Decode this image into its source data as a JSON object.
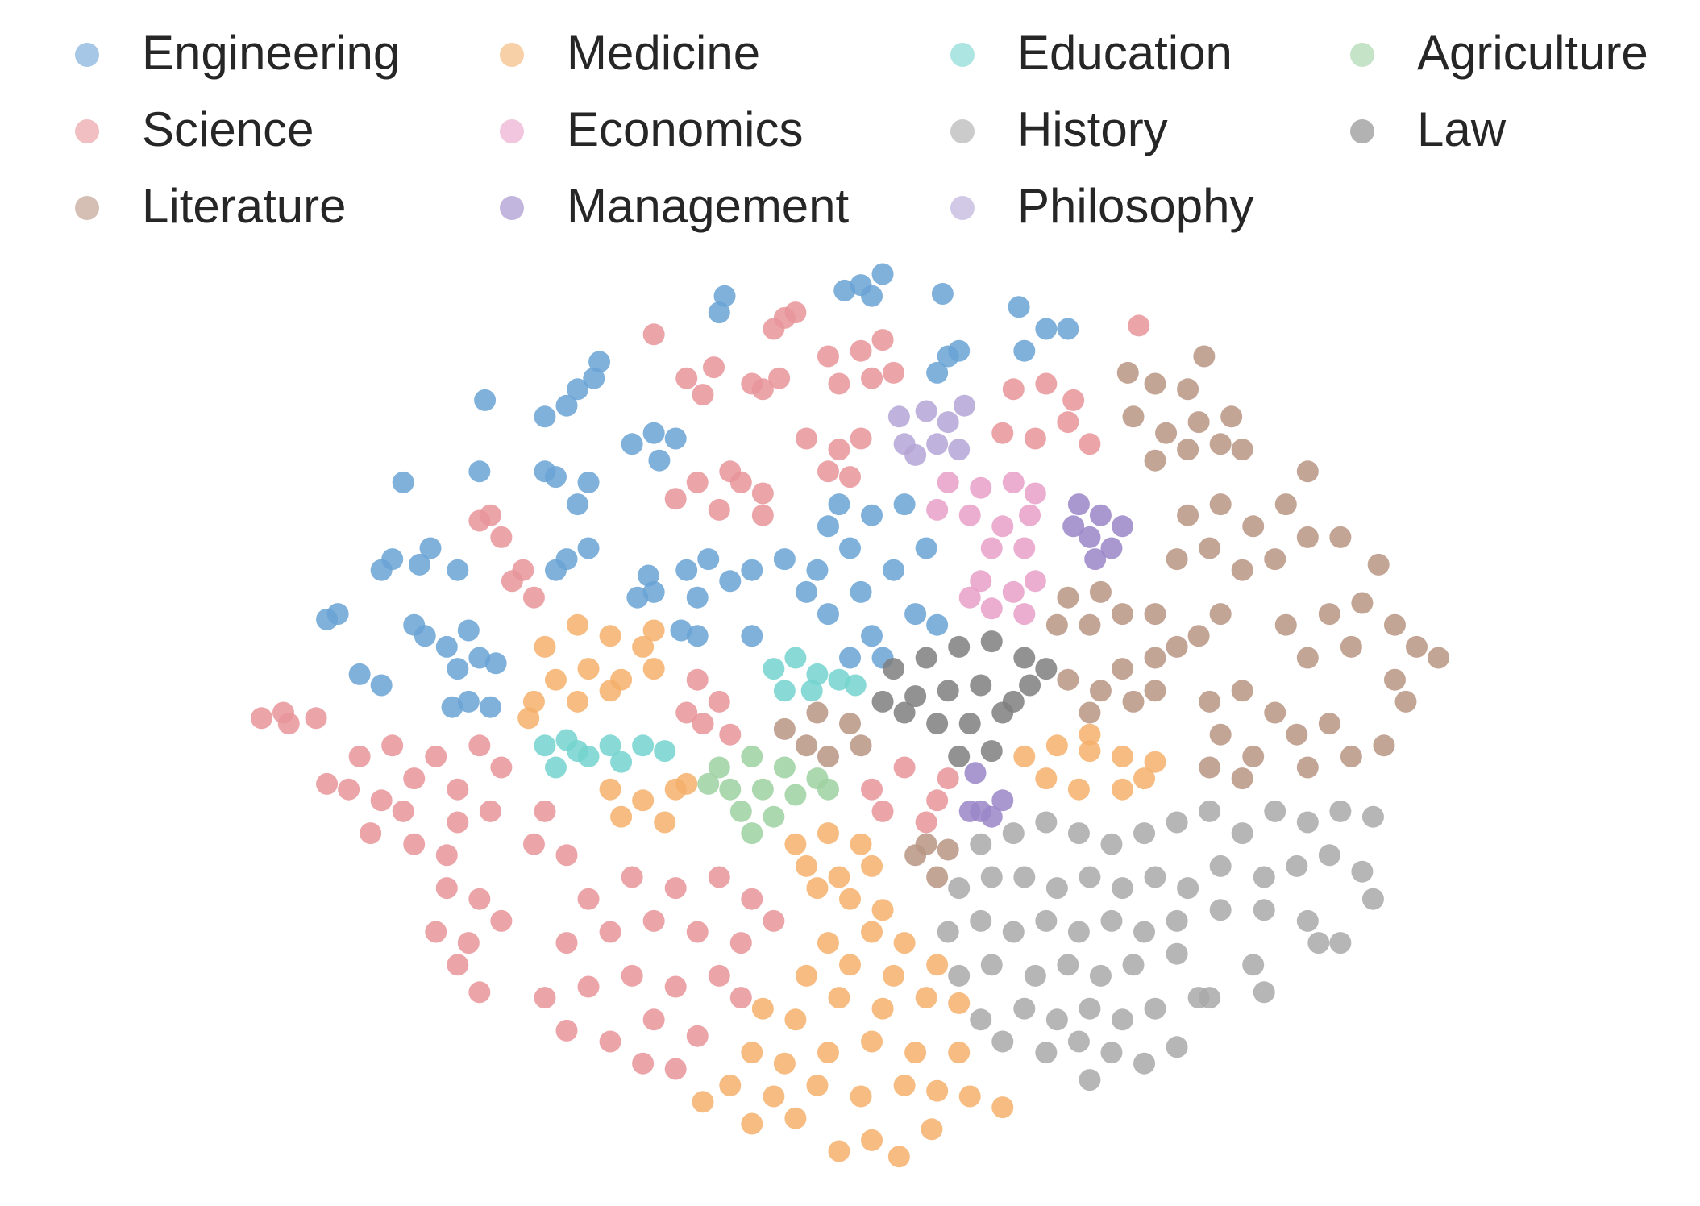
{
  "chart_data": {
    "type": "scatter",
    "legend": "top",
    "xlim": [
      0,
      156
    ],
    "ylim": [
      0,
      110
    ],
    "series": [
      {
        "name": "Engineering",
        "color": "#6aa3d5",
        "x": [
          79,
          81,
          77.5,
          80,
          66,
          66.5,
          86.5,
          93.5,
          96,
          94,
          98,
          87,
          86,
          88,
          55,
          53,
          54.5,
          50,
          52,
          44.5,
          60,
          58,
          62,
          60.5,
          44,
          51,
          54,
          50,
          53,
          37,
          36,
          38.5,
          35,
          39.5,
          42,
          30,
          31,
          39,
          41,
          44,
          43,
          38,
          45.5,
          42,
          33,
          35,
          43,
          45,
          41.5,
          52,
          54,
          51,
          59.5,
          58.5,
          60,
          63,
          65,
          67,
          69,
          64,
          64,
          62.5,
          69,
          76,
          78,
          80,
          75,
          79,
          82,
          76,
          80,
          84,
          85,
          83,
          77,
          74,
          81,
          86,
          72,
          78
        ],
        "y": [
          84,
          85,
          83.5,
          83,
          81.5,
          83,
          83.2,
          82,
          80,
          78,
          80,
          77.5,
          76,
          78,
          77,
          74.5,
          75.5,
          72,
          73,
          73.5,
          70.5,
          69.5,
          70,
          68,
          67,
          66.5,
          66,
          67,
          64,
          66,
          59,
          58.5,
          58,
          60,
          58,
          53.5,
          54,
          52,
          51,
          50,
          52.5,
          53,
          49.5,
          49,
          48.5,
          47.5,
          46,
          45.5,
          45.5,
          59,
          60,
          58,
          57.5,
          55.5,
          56,
          58,
          59,
          57,
          58,
          55.5,
          52,
          52.5,
          52,
          62,
          60,
          63,
          58,
          56,
          58,
          54,
          52,
          54,
          60,
          64,
          64,
          56,
          50,
          53,
          59,
          50
        ]
      },
      {
        "name": "Science",
        "color": "#e8959a",
        "x": [
          60,
          72,
          71,
          73,
          63,
          65.5,
          64.5,
          70,
          71.5,
          69,
          76,
          79,
          81,
          82,
          77,
          80,
          93,
          96,
          98.5,
          92,
          95,
          98,
          100,
          104.5,
          74,
          77,
          79,
          76,
          78,
          64,
          67,
          70,
          62,
          66,
          70,
          68,
          44,
          46,
          45,
          47,
          49,
          48,
          24,
          26.5,
          29,
          26,
          33,
          36,
          40,
          44,
          32,
          35,
          38,
          42,
          46,
          34,
          38,
          42,
          45,
          30,
          37,
          41,
          41,
          44,
          40,
          43,
          46,
          42,
          44,
          64,
          66,
          63,
          67,
          64.5,
          80,
          83,
          86,
          81,
          85,
          87,
          50,
          49,
          52,
          54,
          58,
          62,
          66,
          69,
          52,
          56,
          60,
          64,
          68,
          71,
          50,
          54,
          58,
          62,
          66,
          52,
          56,
          60,
          64,
          59,
          62,
          68
        ],
        "y": [
          79.5,
          81,
          80,
          81.5,
          75.5,
          76.5,
          74,
          74.5,
          75.5,
          75,
          77.5,
          78,
          79,
          76,
          75,
          75.5,
          74.5,
          75,
          73.5,
          70.5,
          70,
          71.5,
          69.5,
          80.3,
          70,
          69,
          70,
          67,
          66.5,
          66,
          67,
          65,
          64.5,
          63.5,
          63,
          66,
          62.5,
          61,
          63,
          57,
          55.5,
          58,
          44.5,
          44,
          44.5,
          45,
          41,
          42,
          41,
          42,
          38,
          37,
          39,
          38,
          40,
          34,
          33,
          35,
          36,
          38.5,
          36,
          32,
          29,
          28,
          25,
          24,
          26,
          22,
          19.5,
          48,
          46,
          45,
          43,
          44,
          38,
          40,
          37,
          36,
          35,
          39,
          36,
          33,
          32,
          28,
          30,
          29,
          30,
          28,
          24,
          25,
          26,
          25,
          24,
          26,
          19,
          20,
          21,
          20,
          21,
          16,
          15,
          17,
          15.5,
          13,
          12.5,
          19
        ]
      },
      {
        "name": "Literature",
        "color": "#b99584",
        "x": [
          103.5,
          106,
          109,
          110.5,
          104,
          107,
          110,
          113,
          106,
          109,
          112,
          114,
          120,
          109,
          112,
          115,
          118,
          120,
          108,
          111,
          114,
          117,
          123,
          126.5,
          98,
          101,
          100,
          97,
          103,
          106,
          108,
          106,
          110,
          112,
          118,
          122,
          125,
          128,
          130,
          132,
          120,
          124,
          128,
          129,
          98,
          101,
          104,
          100,
          103,
          106,
          111,
          114,
          117,
          112,
          115,
          119,
          122,
          120,
          124,
          111,
          114,
          127,
          72,
          75,
          78,
          76,
          79,
          74,
          84,
          86,
          85,
          87
        ],
        "y": [
          76,
          75,
          74.5,
          77.5,
          72,
          70.5,
          71.5,
          72,
          68,
          69,
          69.5,
          69,
          67,
          63,
          64,
          62,
          64,
          61,
          59,
          60,
          58,
          59,
          61,
          58.5,
          55.5,
          56,
          53,
          53,
          54,
          54,
          51,
          50,
          52,
          54,
          53,
          54,
          55,
          53,
          51,
          50,
          50,
          51,
          48,
          46,
          48,
          47,
          46,
          45,
          49,
          47,
          46,
          47,
          45,
          43,
          41,
          43,
          44,
          40,
          41,
          40,
          39,
          42,
          43.5,
          45,
          44,
          41,
          42,
          42,
          32,
          30,
          33,
          32.5
        ]
      },
      {
        "name": "Medicine",
        "color": "#f4b06c",
        "x": [
          50,
          53,
          56,
          59,
          51,
          54,
          57,
          60,
          49,
          53,
          56,
          48.5,
          60,
          56,
          59,
          62,
          57,
          61,
          63,
          94,
          97,
          100,
          103,
          106,
          96,
          99,
          103,
          105,
          100,
          73,
          76,
          79,
          74,
          77,
          80,
          78,
          81,
          75,
          76,
          80,
          83,
          74,
          78,
          82,
          86,
          70,
          73,
          77,
          81,
          85,
          88,
          69,
          72,
          76,
          80,
          84,
          88,
          67,
          71,
          75,
          79,
          83,
          86,
          64.5,
          69,
          73,
          77,
          80,
          82.5,
          85.5,
          92,
          89
        ],
        "y": [
          51,
          53,
          52,
          51,
          48,
          49,
          48,
          49,
          46,
          46,
          47,
          44.5,
          52.5,
          38,
          37,
          38,
          35.5,
          35,
          38.5,
          41,
          42,
          41.5,
          41,
          40.5,
          39,
          38,
          38,
          39,
          43,
          33,
          34,
          33,
          31,
          30,
          31,
          28,
          27,
          29,
          24,
          25,
          24,
          21,
          22,
          21,
          22,
          18,
          17,
          19,
          18,
          19,
          18.5,
          14,
          13,
          14,
          15,
          14,
          14,
          11,
          10,
          11,
          10,
          11,
          10.5,
          9.5,
          7.5,
          8,
          5,
          6,
          4.5,
          7,
          9,
          10
        ]
      },
      {
        "name": "Economics",
        "color": "#e8a0c8",
        "x": [
          87,
          90,
          93,
          95,
          89,
          92,
          94.5,
          86,
          91,
          94,
          90,
          93,
          95,
          91,
          89,
          94
        ],
        "y": [
          66,
          65.5,
          66,
          65,
          63,
          62,
          63,
          63.5,
          60,
          60,
          57,
          56,
          57,
          54.5,
          55.5,
          54
        ]
      },
      {
        "name": "Management",
        "color": "#9a86c8",
        "x": [
          99,
          101,
          103,
          100,
          102,
          98.5,
          100.5,
          89.5,
          90,
          92,
          91,
          89
        ],
        "y": [
          64,
          63,
          62,
          61,
          60,
          62,
          59,
          39.5,
          36,
          37,
          35.5,
          36
        ]
      },
      {
        "name": "Education",
        "color": "#74d3cf",
        "x": [
          71,
          73,
          75,
          77,
          72,
          74.5,
          78.5,
          50,
          53,
          56,
          59,
          61,
          51,
          54,
          57,
          52
        ],
        "y": [
          49,
          50,
          48.5,
          48,
          47,
          47,
          47.5,
          42,
          41.5,
          42,
          42,
          41.5,
          40,
          41,
          40.5,
          42.5
        ]
      },
      {
        "name": "History",
        "color": "#a9a9a9",
        "x": [
          90,
          93,
          96,
          99,
          102,
          105,
          108,
          111,
          114,
          117,
          120,
          123,
          126,
          88,
          91,
          94,
          97,
          100,
          103,
          106,
          109,
          112,
          116,
          119,
          122,
          125,
          87,
          90,
          93,
          96,
          99,
          102,
          105,
          108,
          112,
          116,
          120,
          123,
          126,
          88,
          91,
          95,
          98,
          101,
          104,
          108,
          111,
          115,
          121,
          90,
          94,
          97,
          100,
          103,
          106,
          110,
          92,
          96,
          99,
          102,
          105,
          108,
          100,
          116
        ],
        "y": [
          33,
          34,
          35,
          34,
          33,
          34,
          35,
          36,
          34,
          36,
          35,
          36,
          35.5,
          29,
          30,
          30,
          29,
          30,
          29,
          30,
          29,
          31,
          30,
          31,
          32,
          30.5,
          25,
          26,
          25,
          26,
          25,
          26,
          25,
          26,
          27,
          27,
          26,
          24,
          28,
          21,
          22,
          21,
          22,
          21,
          22,
          23,
          19,
          22,
          24,
          17,
          18,
          17,
          18,
          17,
          18,
          19,
          15,
          14,
          15,
          14,
          13,
          14.5,
          11.5,
          19.5
        ]
      },
      {
        "name": "Philosophy",
        "color": "#b4a5d6",
        "x": [
          82.5,
          85,
          87,
          83,
          86,
          84,
          88,
          88.5
        ],
        "y": [
          72,
          72.5,
          71.5,
          69.5,
          69.5,
          68.5,
          69,
          73
        ]
      },
      {
        "name": "Agriculture",
        "color": "#9ed1a2",
        "x": [
          66,
          69,
          72,
          75,
          67,
          70,
          73,
          76,
          68,
          71,
          69,
          65
        ],
        "y": [
          40,
          41,
          40,
          39,
          38,
          38,
          37.5,
          38,
          36,
          35.5,
          34,
          38.5
        ]
      },
      {
        "name": "Law",
        "color": "#7f7f7f",
        "x": [
          82,
          85,
          88,
          91,
          94,
          96,
          81,
          84,
          87,
          90,
          93,
          86,
          89,
          92,
          88,
          91,
          83,
          94.5
        ],
        "y": [
          49,
          50,
          51,
          51.5,
          50,
          49,
          46,
          46.5,
          47,
          47.5,
          46,
          44,
          44,
          45,
          41,
          41.5,
          45,
          47.5
        ]
      }
    ]
  }
}
